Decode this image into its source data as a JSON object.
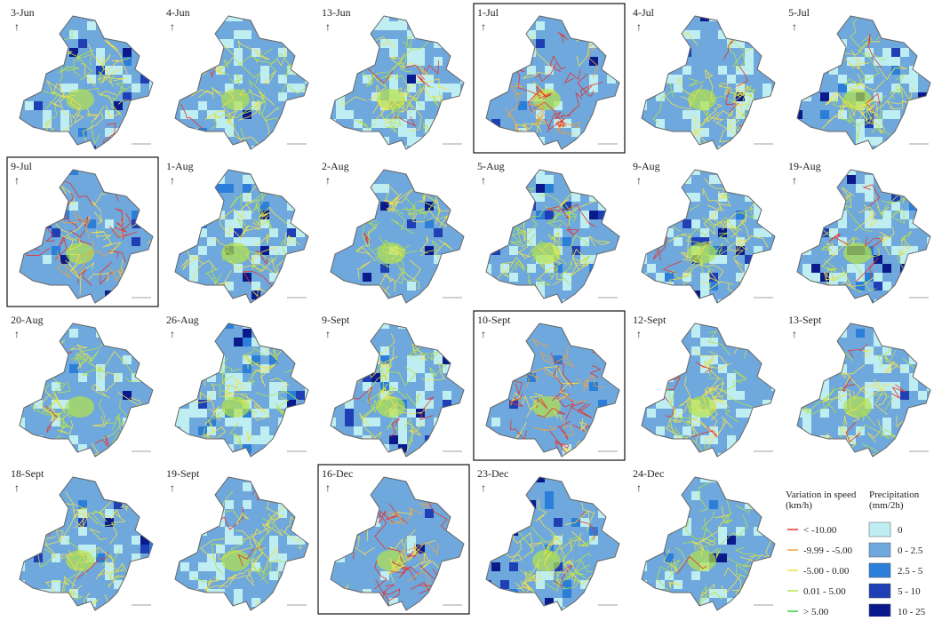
{
  "panels": [
    {
      "label": "3-Jun",
      "highlighted": false
    },
    {
      "label": "4-Jun",
      "highlighted": false
    },
    {
      "label": "13-Jun",
      "highlighted": false
    },
    {
      "label": "1-Jul",
      "highlighted": true
    },
    {
      "label": "4-Jul",
      "highlighted": false
    },
    {
      "label": "5-Jul",
      "highlighted": false
    },
    {
      "label": "9-Jul",
      "highlighted": true
    },
    {
      "label": "1-Aug",
      "highlighted": false
    },
    {
      "label": "2-Aug",
      "highlighted": false
    },
    {
      "label": "5-Aug",
      "highlighted": false
    },
    {
      "label": "9-Aug",
      "highlighted": false
    },
    {
      "label": "19-Aug",
      "highlighted": false
    },
    {
      "label": "20-Aug",
      "highlighted": false
    },
    {
      "label": "26-Aug",
      "highlighted": false
    },
    {
      "label": "9-Sept",
      "highlighted": false
    },
    {
      "label": "10-Sept",
      "highlighted": true
    },
    {
      "label": "12-Sept",
      "highlighted": false
    },
    {
      "label": "13-Sept",
      "highlighted": false
    },
    {
      "label": "18-Sept",
      "highlighted": false
    },
    {
      "label": "19-Sept",
      "highlighted": false
    },
    {
      "label": "16-Dec",
      "highlighted": true
    },
    {
      "label": "23-Dec",
      "highlighted": false
    },
    {
      "label": "24-Dec",
      "highlighted": false
    }
  ],
  "legend": {
    "speed": {
      "title": [
        "Variation in speed",
        "(km/h)"
      ],
      "items": [
        {
          "label": "< -10.00",
          "color": "#e8322a"
        },
        {
          "label": "-9.99 - -5.00",
          "color": "#f2a33a"
        },
        {
          "label": "-5.00 - 0.00",
          "color": "#f2e14a"
        },
        {
          "label": "0.01 - 5.00",
          "color": "#b4e24a"
        },
        {
          "label": "> 5.00",
          "color": "#3fd13f"
        }
      ]
    },
    "precipitation": {
      "title": [
        "Precipitation",
        "(mm/2h)"
      ],
      "items": [
        {
          "label": "0",
          "color": "#bfeef2"
        },
        {
          "label": "0 - 2.5",
          "color": "#6fa8dc"
        },
        {
          "label": "2.5 - 5",
          "color": "#2b7fd8"
        },
        {
          "label": "5 - 10",
          "color": "#1f3fb5"
        },
        {
          "label": "10 - 25",
          "color": "#0b1a8a"
        }
      ]
    }
  }
}
